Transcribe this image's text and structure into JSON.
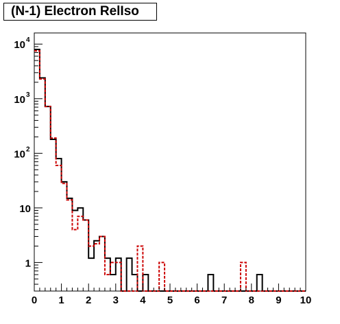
{
  "chart_data": {
    "type": "step-histogram",
    "title": "(N-1) Electron RelIso",
    "xlabel": "",
    "ylabel": "",
    "xlim": [
      0,
      10
    ],
    "ylim": [
      0.3,
      16000
    ],
    "yscale": "log",
    "grid": false,
    "x_ticks": [
      "0",
      "1",
      "2",
      "3",
      "4",
      "5",
      "6",
      "7",
      "8",
      "9",
      "10"
    ],
    "y_ticks": [
      {
        "value": 1,
        "base": "1",
        "exp": ""
      },
      {
        "value": 10,
        "base": "10",
        "exp": ""
      },
      {
        "value": 100,
        "base": "10",
        "exp": "2"
      },
      {
        "value": 1000,
        "base": "10",
        "exp": "3"
      },
      {
        "value": 10000,
        "base": "10",
        "exp": "4"
      }
    ],
    "bin_width": 0.2,
    "series": [
      {
        "color": "#000000",
        "style": "solid",
        "values": [
          8000,
          2400,
          720,
          180,
          80,
          30,
          15,
          9,
          10,
          6,
          1.2,
          2.5,
          3,
          1.2,
          0.6,
          1.2,
          0.2,
          1.2,
          0.6,
          0.2,
          0.6,
          0.2,
          0.2,
          0.2,
          0.2,
          0.2,
          0.2,
          0.2,
          0.2,
          0.2,
          0.2,
          0.2,
          0.6,
          0.2,
          0.2,
          0.2,
          0.2,
          0.2,
          0.2,
          0.2,
          0.2,
          0.6,
          0.2,
          0.2,
          0.2,
          0.2,
          0.2,
          0.2,
          0.2,
          0.2
        ]
      },
      {
        "color": "#cc0000",
        "style": "dashed",
        "values": [
          7500,
          2300,
          720,
          190,
          60,
          28,
          14,
          4,
          7,
          6,
          2,
          2.2,
          3,
          0.6,
          1,
          1,
          0.2,
          0.2,
          0.2,
          2,
          0.2,
          0.2,
          0.2,
          1,
          0.2,
          0.2,
          0.2,
          0.2,
          0.2,
          0.2,
          0.2,
          0.2,
          0.2,
          0.2,
          0.2,
          0.2,
          0.2,
          0.2,
          1,
          0.2,
          0.2,
          0.2,
          0.2,
          0.2,
          0.2,
          0.2,
          0.2,
          0.2,
          0.2,
          0.2
        ]
      }
    ]
  }
}
